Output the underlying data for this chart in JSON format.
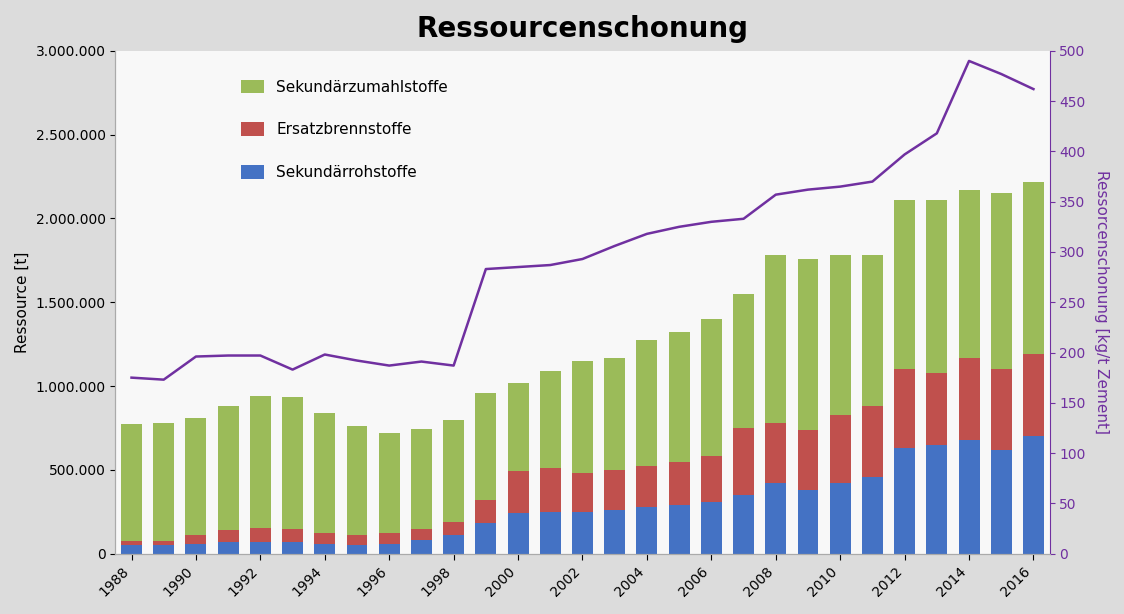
{
  "title": "Ressourcenschonung",
  "years": [
    1988,
    1989,
    1990,
    1991,
    1992,
    1993,
    1994,
    1995,
    1996,
    1997,
    1998,
    1999,
    2000,
    2001,
    2002,
    2003,
    2004,
    2005,
    2006,
    2007,
    2008,
    2009,
    2010,
    2011,
    2012,
    2013,
    2014,
    2015,
    2016
  ],
  "sekundaer_rohstoffe": [
    50000,
    50000,
    60000,
    70000,
    70000,
    70000,
    55000,
    50000,
    55000,
    80000,
    110000,
    180000,
    240000,
    250000,
    250000,
    260000,
    280000,
    290000,
    310000,
    350000,
    420000,
    380000,
    420000,
    460000,
    630000,
    650000,
    680000,
    620000,
    700000
  ],
  "ersatz_brennstoffe": [
    25000,
    28000,
    50000,
    70000,
    80000,
    75000,
    65000,
    60000,
    65000,
    65000,
    80000,
    140000,
    250000,
    260000,
    230000,
    240000,
    245000,
    255000,
    270000,
    400000,
    360000,
    360000,
    410000,
    420000,
    470000,
    430000,
    490000,
    480000,
    490000
  ],
  "sekundaer_zumahlstoffe": [
    700000,
    700000,
    700000,
    740000,
    790000,
    790000,
    720000,
    650000,
    600000,
    600000,
    610000,
    640000,
    530000,
    580000,
    670000,
    670000,
    750000,
    780000,
    820000,
    800000,
    1000000,
    1020000,
    950000,
    900000,
    1010000,
    1030000,
    1000000,
    1050000,
    1030000
  ],
  "ressourcenschonung_line": [
    175,
    173,
    196,
    197,
    197,
    183,
    198,
    192,
    187,
    191,
    187,
    283,
    285,
    287,
    293,
    306,
    318,
    325,
    330,
    333,
    357,
    362,
    365,
    370,
    397,
    418,
    490,
    477,
    462
  ],
  "ylabel_left": "Ressource [t]",
  "ylabel_right": "Ressorcenschonung [kg/t Zement]",
  "bar_colors": [
    "#4472C4",
    "#C0504D",
    "#9BBB59"
  ],
  "line_color": "#7030A0",
  "legend_labels": [
    "Sekundärzumahlstoffe",
    "Ersatzbrennstoffe",
    "Sekundärrohstoffe"
  ],
  "ylim_left": [
    0,
    3000000
  ],
  "ylim_right": [
    0,
    500
  ],
  "yticks_left": [
    0,
    500000,
    1000000,
    1500000,
    2000000,
    2500000,
    3000000
  ],
  "yticks_right": [
    0,
    50,
    100,
    150,
    200,
    250,
    300,
    350,
    400,
    450,
    500
  ],
  "bg_color": "#F2F2F2",
  "title_fontsize": 20,
  "axis_label_fontsize": 11,
  "tick_fontsize": 10,
  "legend_fontsize": 11
}
